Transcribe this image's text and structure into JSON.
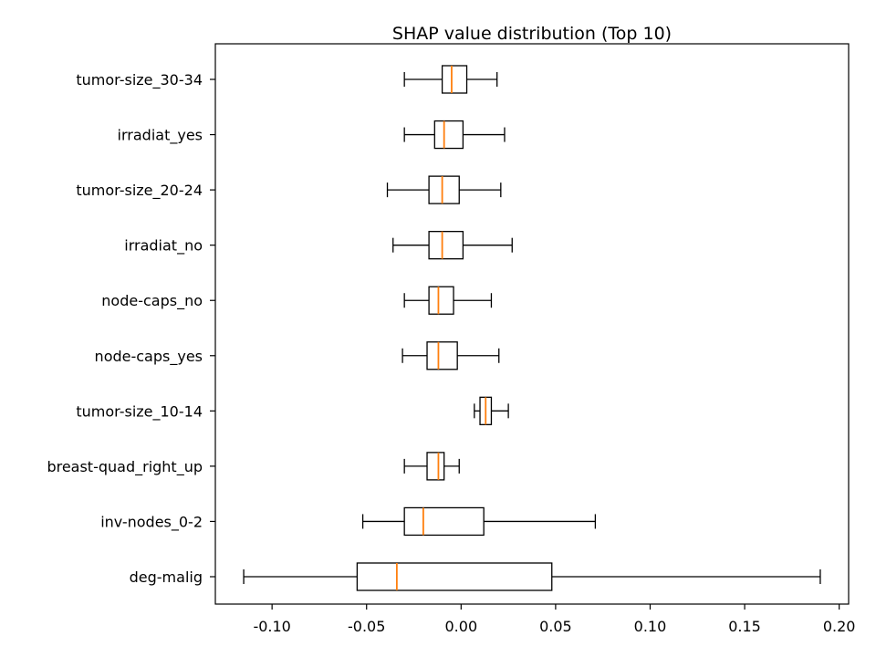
{
  "chart_data": {
    "type": "boxplot",
    "orientation": "horizontal",
    "title": "SHAP value distribution (Top 10)",
    "xlabel": "",
    "ylabel": "",
    "xlim": [
      -0.13,
      0.205
    ],
    "xticks": [
      -0.1,
      -0.05,
      0.0,
      0.05,
      0.1,
      0.15,
      0.2
    ],
    "xtick_labels": [
      "-0.10",
      "-0.05",
      "0.00",
      "0.05",
      "0.10",
      "0.15",
      "0.20"
    ],
    "grid": false,
    "box_color": "#000000",
    "median_color": "#ff7f0e",
    "boxes": [
      {
        "label": "tumor-size_30-34",
        "whisker_low": -0.03,
        "q1": -0.01,
        "median": -0.005,
        "q3": 0.003,
        "whisker_high": 0.019
      },
      {
        "label": "irradiat_yes",
        "whisker_low": -0.03,
        "q1": -0.014,
        "median": -0.009,
        "q3": 0.001,
        "whisker_high": 0.023
      },
      {
        "label": "tumor-size_20-24",
        "whisker_low": -0.039,
        "q1": -0.017,
        "median": -0.01,
        "q3": -0.001,
        "whisker_high": 0.021
      },
      {
        "label": "irradiat_no",
        "whisker_low": -0.036,
        "q1": -0.017,
        "median": -0.01,
        "q3": 0.001,
        "whisker_high": 0.027
      },
      {
        "label": "node-caps_no",
        "whisker_low": -0.03,
        "q1": -0.017,
        "median": -0.012,
        "q3": -0.004,
        "whisker_high": 0.016
      },
      {
        "label": "node-caps_yes",
        "whisker_low": -0.031,
        "q1": -0.018,
        "median": -0.012,
        "q3": -0.002,
        "whisker_high": 0.02
      },
      {
        "label": "tumor-size_10-14",
        "whisker_low": 0.007,
        "q1": 0.01,
        "median": 0.013,
        "q3": 0.016,
        "whisker_high": 0.025
      },
      {
        "label": "breast-quad_right_up",
        "whisker_low": -0.03,
        "q1": -0.018,
        "median": -0.012,
        "q3": -0.009,
        "whisker_high": -0.001
      },
      {
        "label": "inv-nodes_0-2",
        "whisker_low": -0.052,
        "q1": -0.03,
        "median": -0.02,
        "q3": 0.012,
        "whisker_high": 0.071
      },
      {
        "label": "deg-malig",
        "whisker_low": -0.115,
        "q1": -0.055,
        "median": -0.034,
        "q3": 0.048,
        "whisker_high": 0.19
      }
    ]
  }
}
